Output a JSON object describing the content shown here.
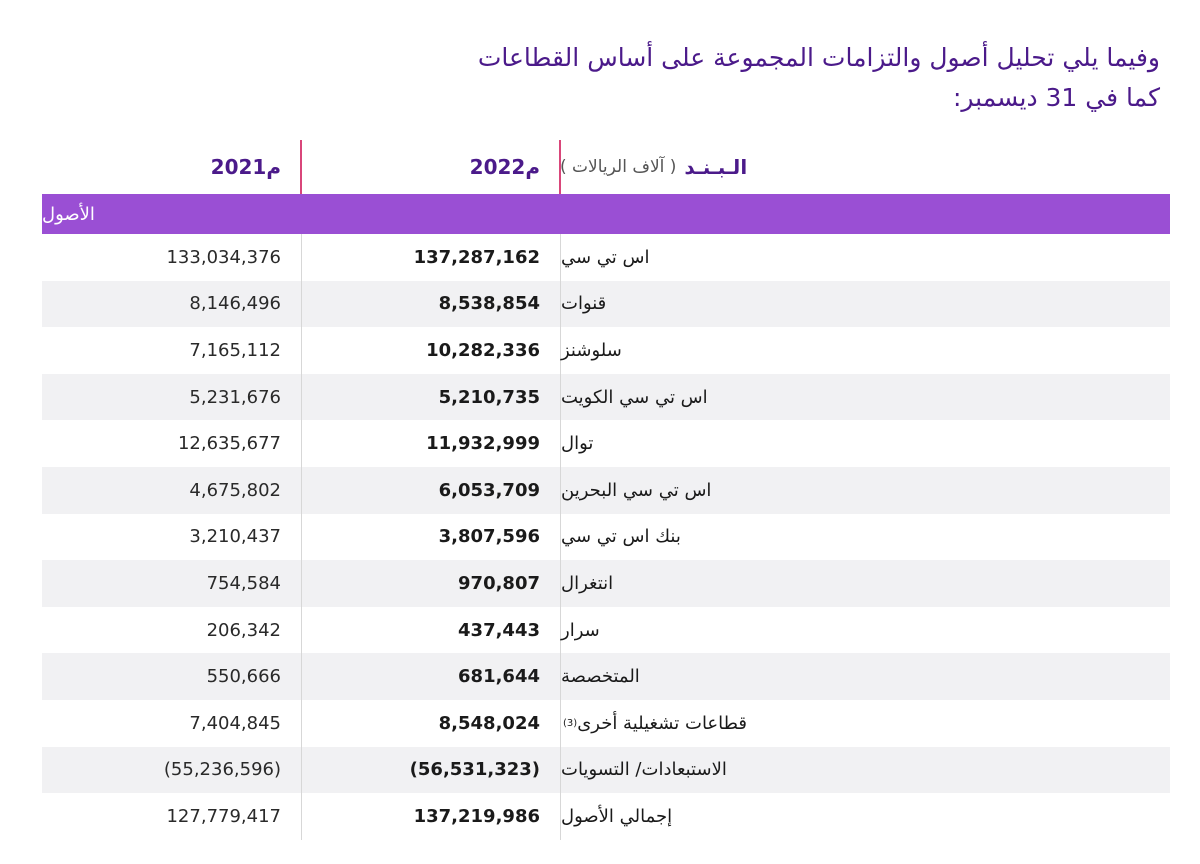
{
  "title": {
    "line1": "وفيما يلي تحليل أصول والتزامات المجموعة على أساس القطاعات",
    "line2": "كما في 31 ديسمبر:"
  },
  "header": {
    "item_label": "الـبـنـد",
    "unit_label": "( آلاف الريالات )",
    "year_2022": "2022م",
    "year_2021": "2021م"
  },
  "section": {
    "label": "الأصول"
  },
  "rows": [
    {
      "label": "اس تي سي",
      "sup": "",
      "v2022": "137,287,162",
      "v2021": "133,034,376"
    },
    {
      "label": "قنوات",
      "sup": "",
      "v2022": "8,538,854",
      "v2021": "8,146,496"
    },
    {
      "label": "سلوشنز",
      "sup": "",
      "v2022": "10,282,336",
      "v2021": "7,165,112"
    },
    {
      "label": "اس تي سي الكويت",
      "sup": "",
      "v2022": "5,210,735",
      "v2021": "5,231,676"
    },
    {
      "label": "توال",
      "sup": "",
      "v2022": "11,932,999",
      "v2021": "12,635,677"
    },
    {
      "label": "اس تي سي البحرين",
      "sup": "",
      "v2022": "6,053,709",
      "v2021": "4,675,802"
    },
    {
      "label": "بنك اس تي سي",
      "sup": "",
      "v2022": "3,807,596",
      "v2021": "3,210,437"
    },
    {
      "label": "انتغرال",
      "sup": "",
      "v2022": "970,807",
      "v2021": "754,584"
    },
    {
      "label": "سرار",
      "sup": "",
      "v2022": "437,443",
      "v2021": "206,342"
    },
    {
      "label": "المتخصصة",
      "sup": "",
      "v2022": "681,644",
      "v2021": "550,666"
    },
    {
      "label": "قطاعات تشغيلية أخرى",
      "sup": "(3)",
      "v2022": "8,548,024",
      "v2021": "7,404,845"
    },
    {
      "label": "الاستبعادات/ التسويات",
      "sup": "",
      "v2022": "(56,531,323)",
      "v2021": "(55,236,596)"
    },
    {
      "label": "إجمالي الأصول",
      "sup": "",
      "v2022": "137,219,986",
      "v2021": "127,779,417"
    }
  ]
}
